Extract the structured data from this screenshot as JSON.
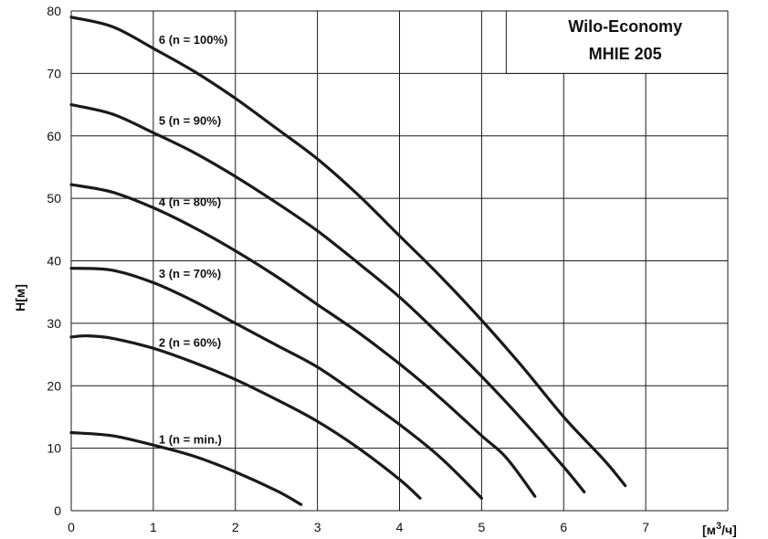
{
  "chart_data": {
    "type": "line",
    "title_lines": [
      "Wilo-Economy",
      "MHIE 205"
    ],
    "xlabel_main": "[м",
    "xlabel_sup": "3",
    "xlabel_end": "/ч]",
    "ylabel": "H[м]",
    "xlim": [
      0,
      8
    ],
    "ylim": [
      0,
      80
    ],
    "x_ticks": [
      "0",
      "1",
      "2",
      "3",
      "4",
      "5",
      "6",
      "7"
    ],
    "y_ticks": [
      "0",
      "10",
      "20",
      "30",
      "40",
      "50",
      "60",
      "70",
      "80"
    ],
    "grid": true,
    "colors": {
      "curve": "#1a1a1a",
      "grid": "#1a1a1a",
      "background": "#ffffff"
    },
    "series": [
      {
        "name": "1 (n = min.)",
        "label_at": [
          1.0,
          11.5
        ],
        "points": [
          [
            0,
            12.5
          ],
          [
            0.5,
            12.0
          ],
          [
            1.0,
            10.5
          ],
          [
            1.5,
            8.7
          ],
          [
            2.0,
            6.2
          ],
          [
            2.5,
            3.2
          ],
          [
            2.8,
            1.0
          ]
        ]
      },
      {
        "name": "2 (n = 60%)",
        "label_at": [
          1.0,
          27.0
        ],
        "points": [
          [
            0,
            27.8
          ],
          [
            0.2,
            28.0
          ],
          [
            0.5,
            27.6
          ],
          [
            1.0,
            26.0
          ],
          [
            1.5,
            23.7
          ],
          [
            2.0,
            21.0
          ],
          [
            2.5,
            17.8
          ],
          [
            3.0,
            14.3
          ],
          [
            3.5,
            10.0
          ],
          [
            4.0,
            5.0
          ],
          [
            4.25,
            2.0
          ]
        ]
      },
      {
        "name": "3 (n = 70%)",
        "label_at": [
          1.0,
          38.0
        ],
        "points": [
          [
            0,
            38.8
          ],
          [
            0.5,
            38.5
          ],
          [
            1.0,
            36.5
          ],
          [
            1.5,
            33.5
          ],
          [
            2.0,
            30.0
          ],
          [
            2.5,
            26.5
          ],
          [
            3.0,
            23.0
          ],
          [
            3.5,
            18.5
          ],
          [
            4.0,
            13.8
          ],
          [
            4.5,
            8.5
          ],
          [
            5.0,
            2.0
          ]
        ]
      },
      {
        "name": "4  (n = 80%)",
        "label_at": [
          1.0,
          49.5
        ],
        "points": [
          [
            0,
            52.2
          ],
          [
            0.5,
            51.0
          ],
          [
            1.0,
            48.5
          ],
          [
            1.5,
            45.3
          ],
          [
            2.0,
            41.6
          ],
          [
            2.5,
            37.5
          ],
          [
            3.0,
            33.0
          ],
          [
            3.5,
            28.5
          ],
          [
            4.0,
            23.5
          ],
          [
            4.5,
            18.0
          ],
          [
            5.0,
            12.0
          ],
          [
            5.3,
            8.5
          ],
          [
            5.65,
            2.3
          ]
        ]
      },
      {
        "name": "5  (n = 90%)",
        "label_at": [
          1.0,
          62.5
        ],
        "points": [
          [
            0,
            65.0
          ],
          [
            0.5,
            63.5
          ],
          [
            1.0,
            60.5
          ],
          [
            1.5,
            57.3
          ],
          [
            2.0,
            53.5
          ],
          [
            2.5,
            49.3
          ],
          [
            3.0,
            44.8
          ],
          [
            3.5,
            39.6
          ],
          [
            4.0,
            34.2
          ],
          [
            4.5,
            28.0
          ],
          [
            5.0,
            21.5
          ],
          [
            5.5,
            14.5
          ],
          [
            6.0,
            7.0
          ],
          [
            6.25,
            3.0
          ]
        ]
      },
      {
        "name": "6 (n = 100%)",
        "label_at": [
          1.0,
          75.5
        ],
        "points": [
          [
            0,
            79.0
          ],
          [
            0.5,
            77.5
          ],
          [
            1.0,
            74.0
          ],
          [
            1.5,
            70.3
          ],
          [
            2.0,
            66.0
          ],
          [
            2.5,
            61.2
          ],
          [
            3.0,
            56.3
          ],
          [
            3.5,
            50.5
          ],
          [
            4.0,
            44.0
          ],
          [
            4.5,
            37.5
          ],
          [
            5.0,
            30.5
          ],
          [
            5.5,
            23.0
          ],
          [
            6.0,
            15.0
          ],
          [
            6.5,
            8.0
          ],
          [
            6.75,
            4.0
          ]
        ]
      }
    ]
  }
}
